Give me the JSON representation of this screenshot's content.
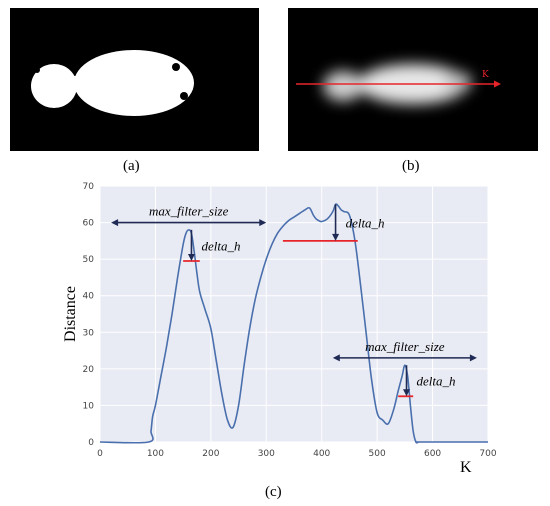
{
  "panels": {
    "a_label": "(a)",
    "b_label": "(b)",
    "c_label": "(c)",
    "b_axis_label": "K"
  },
  "colors": {
    "curve": "#4a6fad",
    "plot_bg": "#e8ebf4",
    "grid": "#ffffff",
    "arrow": "#1f2a55",
    "red_line": "#e8242b"
  },
  "chart_data": {
    "type": "line",
    "xlabel": "K",
    "ylabel": "Distance",
    "xlim": [
      0,
      700
    ],
    "ylim": [
      0,
      70
    ],
    "xticks": [
      0,
      100,
      200,
      300,
      400,
      500,
      600,
      700
    ],
    "yticks": [
      0,
      10,
      20,
      30,
      40,
      50,
      60,
      70
    ],
    "grid": true,
    "x": [
      0,
      88,
      92,
      95,
      100,
      110,
      120,
      130,
      140,
      150,
      155,
      160,
      165,
      170,
      175,
      180,
      190,
      200,
      210,
      220,
      230,
      240,
      250,
      260,
      270,
      280,
      290,
      300,
      310,
      320,
      330,
      340,
      350,
      360,
      370,
      378,
      385,
      390,
      395,
      400,
      410,
      420,
      425,
      430,
      435,
      440,
      450,
      460,
      470,
      480,
      490,
      500,
      510,
      520,
      530,
      538,
      545,
      550,
      555,
      560,
      565,
      570,
      575,
      580,
      700
    ],
    "y": [
      0,
      0,
      3,
      7,
      10,
      18,
      26,
      35,
      45,
      54,
      57,
      58,
      57,
      52,
      46,
      41,
      36,
      31,
      22,
      13,
      6,
      4,
      10,
      21,
      31,
      39,
      45,
      50,
      54,
      57,
      59,
      60.5,
      61.5,
      62.5,
      63.5,
      64,
      62,
      61,
      60.5,
      60.3,
      61,
      63,
      65,
      64.5,
      63.5,
      63,
      62,
      55,
      43,
      30,
      17,
      8,
      6,
      5,
      9,
      14,
      18,
      21,
      18,
      10,
      3,
      0,
      0,
      0,
      0
    ],
    "annotations": [
      {
        "text": "max_filter_size",
        "type": "double-arrow",
        "x1": 20,
        "x2": 300,
        "y": 60
      },
      {
        "text": "delta_h",
        "type": "down-arrow",
        "x": 165,
        "y1": 58,
        "y2": 49.5,
        "ref_line": [
          150,
          180,
          49.5
        ]
      },
      {
        "text": "delta_h",
        "type": "down-arrow",
        "x": 425,
        "y1": 65,
        "y2": 55,
        "ref_line": [
          330,
          465,
          55
        ]
      },
      {
        "text": "max_filter_size",
        "type": "double-arrow",
        "x1": 420,
        "x2": 680,
        "y": 23
      },
      {
        "text": "delta_h",
        "type": "down-arrow",
        "x": 553,
        "y1": 21,
        "y2": 12.5,
        "ref_line": [
          538,
          565,
          12.5
        ]
      }
    ]
  }
}
